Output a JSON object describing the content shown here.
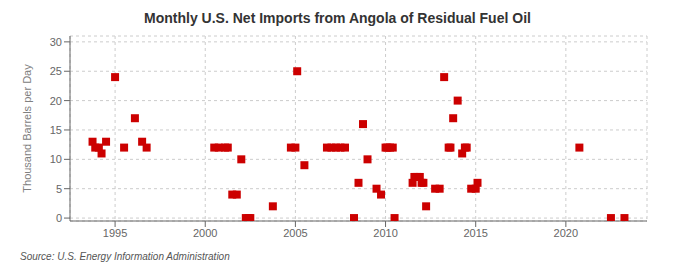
{
  "chart_data": {
    "type": "scatter",
    "title": "Monthly U.S. Net Imports from Angola of Residual Fuel Oil",
    "y_label": "Thousand Barrels per Day",
    "annotations": [
      "Source: U.S. Energy Information Administration"
    ],
    "x": [
      1993.75,
      1993.9,
      1994.1,
      1994.25,
      1994.5,
      1995.0,
      1995.5,
      1996.1,
      1996.5,
      1996.75,
      2000.5,
      2000.75,
      2001.1,
      2001.25,
      2001.5,
      2001.75,
      2002.0,
      2002.25,
      2002.4,
      2002.5,
      2003.75,
      2004.75,
      2005.0,
      2005.1,
      2005.5,
      2006.75,
      2007.0,
      2007.25,
      2007.5,
      2007.75,
      2008.25,
      2008.5,
      2008.75,
      2009.0,
      2009.5,
      2009.75,
      2010.0,
      2010.1,
      2010.25,
      2010.4,
      2010.5,
      2011.5,
      2011.6,
      2011.75,
      2011.9,
      2012.0,
      2012.1,
      2012.25,
      2012.75,
      2013.0,
      2013.25,
      2013.5,
      2013.6,
      2013.75,
      2014.0,
      2014.25,
      2014.4,
      2014.5,
      2014.75,
      2015.0,
      2015.1,
      2020.75,
      2022.5,
      2023.25
    ],
    "values": [
      13,
      12,
      12,
      11,
      13,
      24,
      12,
      17,
      13,
      12,
      12,
      12,
      12,
      12,
      4,
      4,
      10,
      0,
      0,
      0,
      2,
      12,
      12,
      25,
      9,
      12,
      12,
      12,
      12,
      12,
      0,
      6,
      16,
      10,
      5,
      4,
      12,
      12,
      12,
      12,
      0,
      6,
      7,
      7,
      7,
      6,
      6,
      2,
      5,
      5,
      24,
      12,
      12,
      17,
      20,
      11,
      12,
      12,
      5,
      5,
      6,
      12,
      0,
      0
    ],
    "color": "#cc0000",
    "marker": "square",
    "xlim": [
      1992.5,
      2024.5
    ],
    "ylim": [
      -0.5,
      31
    ],
    "xticks": [
      1995,
      2000,
      2005,
      2010,
      2015,
      2020
    ],
    "yticks": [
      0,
      5,
      10,
      15,
      20,
      25,
      30
    ],
    "grid": true
  }
}
